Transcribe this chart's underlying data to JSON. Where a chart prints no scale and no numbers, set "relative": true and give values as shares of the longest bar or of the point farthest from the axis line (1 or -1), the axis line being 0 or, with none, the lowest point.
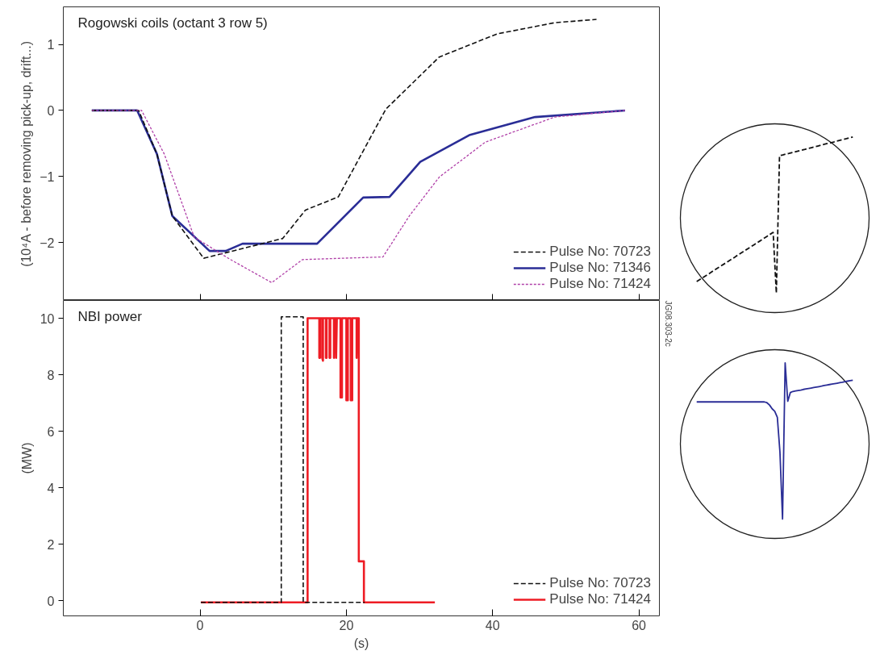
{
  "chart_data": [
    {
      "type": "line",
      "title": "Rogowski coils (octant 3 row 5)",
      "ylabel": "(10⁴A - before removing pick-up, drift...)",
      "xlim": [
        -18.7,
        62.8
      ],
      "ylim": [
        -2.88,
        1.57
      ],
      "xticks": [
        {
          "value": 0,
          "label": null
        },
        {
          "value": 20,
          "label": null
        },
        {
          "value": 40,
          "label": null
        },
        {
          "value": 60,
          "label": null
        }
      ],
      "yticks": [
        -2,
        -1,
        0,
        1
      ],
      "tick_labels": "y",
      "grid": false,
      "legend": "bottom right",
      "series": [
        {
          "name": "Pulse No: 70723",
          "color": "#111111",
          "line_style": "dashed",
          "x": [
            -14.8,
            -8.4,
            -5.9,
            -3.8,
            0.5,
            11.3,
            14.4,
            18.9,
            25.4,
            32.7,
            40.6,
            48.5,
            54.2
          ],
          "values": [
            0,
            0,
            -0.66,
            -1.6,
            -2.24,
            -1.94,
            -1.51,
            -1.31,
            0.02,
            0.81,
            1.16,
            1.33,
            1.38
          ]
        },
        {
          "name": "Pulse No: 71346",
          "color": "#2a2d96",
          "line_style": "solid",
          "x": [
            -14.8,
            -8.6,
            -5.9,
            -3.8,
            1.3,
            3.5,
            5.8,
            16.0,
            22.3,
            25.9,
            30.1,
            36.9,
            45.8,
            58.1
          ],
          "values": [
            0,
            0,
            -0.66,
            -1.6,
            -2.13,
            -2.13,
            -2.02,
            -2.02,
            -1.32,
            -1.31,
            -0.78,
            -0.37,
            -0.1,
            0
          ]
        },
        {
          "name": "Pulse No: 71424",
          "color": "#b040a8",
          "line_style": "dotted",
          "x": [
            -14.8,
            -8.0,
            -4.9,
            -0.8,
            4.0,
            9.8,
            14.0,
            25.0,
            28.6,
            32.7,
            39.0,
            48.5,
            58.1
          ],
          "values": [
            0,
            0,
            -0.66,
            -1.92,
            -2.25,
            -2.61,
            -2.26,
            -2.22,
            -1.6,
            -1.01,
            -0.48,
            -0.1,
            0
          ]
        }
      ]
    },
    {
      "type": "line",
      "title": "NBI power",
      "xlabel": "(s)",
      "ylabel": "(MW)",
      "annotations": [
        "JG08.303-2c"
      ],
      "xlim": [
        -18.7,
        62.8
      ],
      "ylim": [
        -0.53,
        10.63
      ],
      "xticks": [
        0,
        20,
        40,
        60
      ],
      "yticks": [
        0,
        2,
        4,
        6,
        8,
        10
      ],
      "grid": false,
      "legend": "bottom right",
      "series": [
        {
          "name": "Pulse No: 70723",
          "color": "#111111",
          "line_style": "dashed",
          "x": [
            0.1,
            11.1,
            11.1,
            14.1,
            14.1,
            22.5
          ],
          "values": [
            -0.05,
            -0.05,
            10.05,
            10.05,
            -0.05,
            -0.05
          ]
        },
        {
          "name": "Pulse No: 71424",
          "color": "#ee1c24",
          "line_style": "solid",
          "x": [
            0.1,
            14.7,
            14.7,
            16.3,
            16.3,
            16.4,
            16.4,
            16.7,
            16.7,
            16.8,
            16.8,
            17.2,
            17.2,
            17.3,
            17.3,
            17.7,
            17.7,
            17.8,
            17.8,
            18.3,
            18.3,
            18.4,
            18.6,
            18.6,
            18.7,
            19.2,
            19.2,
            19.4,
            19.4,
            20.0,
            20.0,
            20.2,
            20.2,
            20.6,
            20.6,
            20.8,
            20.8,
            21.4,
            21.4,
            21.5,
            21.7,
            21.7,
            22.4,
            22.4,
            32.1
          ],
          "values": [
            -0.05,
            -0.05,
            10,
            10,
            8.6,
            8.6,
            10,
            10,
            8.6,
            8.5,
            10,
            10,
            8.6,
            8.6,
            10,
            10,
            8.6,
            8.6,
            10,
            10,
            8.6,
            10,
            10,
            8.6,
            10,
            10,
            7.2,
            7.2,
            10,
            10,
            7.1,
            7.1,
            10,
            10,
            7.1,
            7.1,
            10,
            10,
            8.6,
            10,
            10,
            1.4,
            1.4,
            -0.05,
            -0.05
          ]
        }
      ]
    },
    {
      "type": "line",
      "relative": true,
      "categories": [
        null,
        null,
        null,
        null,
        null,
        null,
        null,
        null,
        null,
        null,
        null,
        null,
        null,
        null,
        null,
        null,
        null,
        null,
        null,
        null,
        null,
        null,
        null,
        null,
        null,
        null,
        null,
        null,
        null,
        null,
        null,
        null,
        null,
        null,
        null,
        null,
        null,
        null,
        null,
        null,
        null,
        null,
        null,
        null,
        null,
        null,
        null,
        null,
        null,
        null
      ],
      "series": [
        {
          "color": "#111111",
          "line_style": "dashed",
          "values": [
            0.074,
            0.087,
            0.1,
            0.113,
            0.126,
            0.14,
            0.153,
            0.166,
            0.179,
            0.192,
            0.205,
            0.218,
            0.231,
            0.245,
            0.258,
            0.271,
            0.284,
            0.297,
            0.31,
            0.323,
            0.336,
            0.35,
            0.363,
            0.376,
            0.389,
            0,
            0.88,
            0.885,
            0.891,
            0.895,
            0.901,
            0.906,
            0.911,
            0.916,
            0.921,
            0.927,
            0.932,
            0.937,
            0.942,
            0.947,
            0.953,
            0.958,
            0.963,
            0.968,
            0.974,
            0.979,
            0.984,
            0.989,
            0.995,
            1.0
          ]
        }
      ]
    },
    {
      "type": "line",
      "relative": true,
      "categories": [
        null,
        null,
        null,
        null,
        null,
        null,
        null,
        null,
        null,
        null,
        null,
        null,
        null,
        null,
        null,
        null,
        null,
        null,
        null,
        null,
        null,
        null,
        null,
        null,
        null,
        null,
        null,
        null,
        null,
        null,
        null,
        null,
        null,
        null,
        null,
        null,
        null,
        null,
        null,
        null,
        null,
        null,
        null,
        null,
        null,
        null,
        null,
        null,
        null,
        null,
        null,
        null,
        null,
        null,
        null,
        null,
        null,
        null,
        null,
        null,
        null
      ],
      "series": [
        {
          "color": "#2a2d96",
          "line_style": "solid",
          "values": [
            0.75,
            0.75,
            0.75,
            0.75,
            0.75,
            0.75,
            0.75,
            0.75,
            0.75,
            0.75,
            0.75,
            0.75,
            0.75,
            0.75,
            0.75,
            0.75,
            0.75,
            0.75,
            0.75,
            0.75,
            0.75,
            0.75,
            0.75,
            0.75,
            0.75,
            0.75,
            0.75,
            0.745,
            0.73,
            0.706,
            0.69,
            0.651,
            0.429,
            0,
            1.0,
            0.754,
            0.81,
            0.817,
            0.82,
            0.823,
            0.826,
            0.83,
            0.833,
            0.836,
            0.839,
            0.842,
            0.845,
            0.848,
            0.851,
            0.855,
            0.858,
            0.861,
            0.864,
            0.867,
            0.87,
            0.873,
            0.876,
            0.88,
            0.883,
            0.886,
            0.889
          ]
        }
      ]
    }
  ]
}
